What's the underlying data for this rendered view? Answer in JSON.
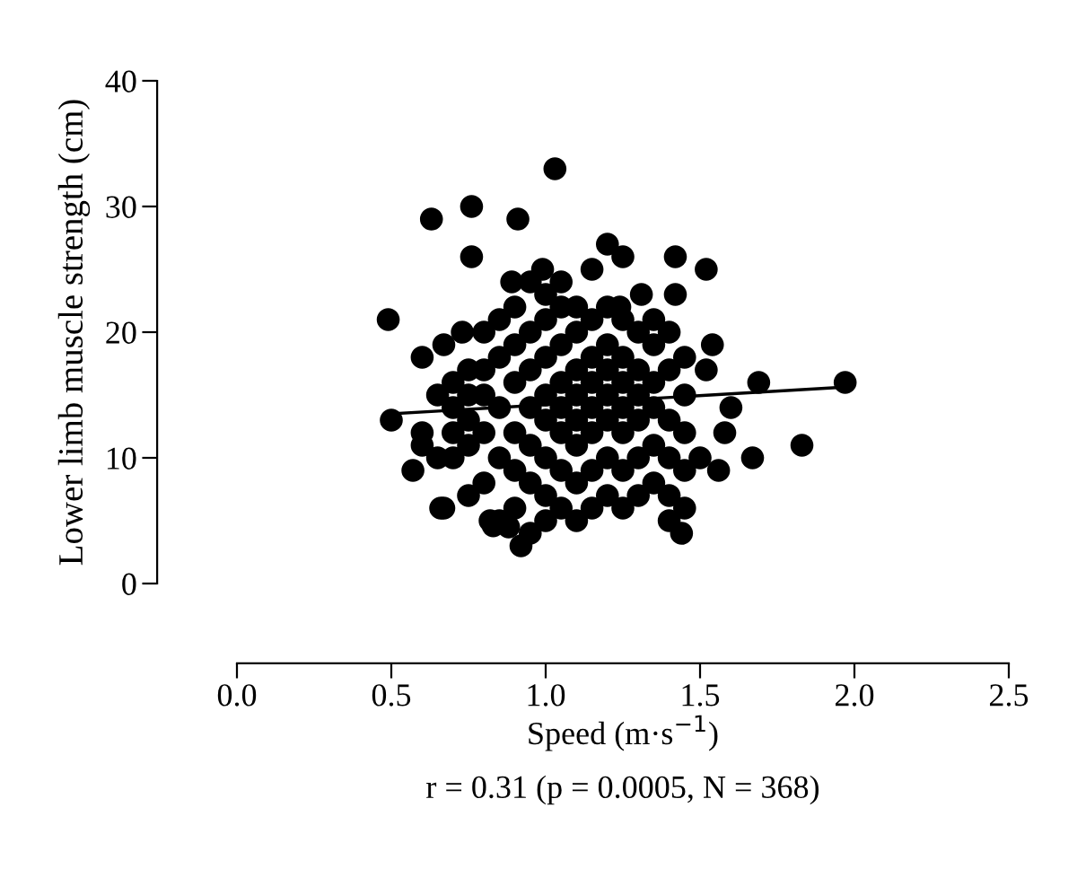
{
  "chart_data": {
    "type": "scatter",
    "xlabel": "Speed (m·s$^{−1}$)",
    "ylabel": "Lower limb muscle strength (cm)",
    "annotations": [
      "r = 0.31 (p = 0.0005, N = 368)"
    ],
    "xlim": [
      0,
      2.5
    ],
    "ylim": [
      0,
      40
    ],
    "xticks": [
      {
        "value": 0,
        "label": "0.0"
      },
      {
        "value": 0.5,
        "label": "0.5"
      },
      {
        "value": 1,
        "label": "1.0"
      },
      {
        "value": 1.5,
        "label": "1.5"
      },
      {
        "value": 2,
        "label": "2.0"
      },
      {
        "value": 2.5,
        "label": "2.5"
      }
    ],
    "yticks": [
      0,
      10,
      20,
      30,
      40
    ],
    "grid": false,
    "marker": "circle",
    "series": [
      {
        "color": "#000000",
        "x": [
          0.49,
          0.5,
          0.57,
          0.66,
          0.67,
          0.92,
          0.83,
          0.6,
          0.67,
          0.73,
          0.89,
          0.99,
          1.03,
          0.63,
          0.76,
          0.91,
          0.76,
          1.2,
          1.25,
          1.42,
          1.52,
          1.42,
          1.31,
          1.24,
          1.69,
          1.97,
          1.6,
          1.58,
          1.67,
          1.83,
          1.56,
          1.5,
          1.44,
          1.54,
          1.52,
          0.8,
          0.8,
          0.8,
          0.8,
          0.8,
          0.85,
          0.85,
          0.85,
          0.85,
          0.85,
          0.9,
          0.9,
          0.9,
          0.9,
          0.9,
          0.9,
          0.95,
          0.95,
          0.95,
          0.95,
          0.95,
          0.95,
          0.95,
          1.0,
          1.0,
          1.0,
          1.0,
          1.0,
          1.0,
          1.0,
          1.0,
          1.05,
          1.05,
          1.05,
          1.05,
          1.05,
          1.05,
          1.05,
          1.05,
          1.1,
          1.1,
          1.1,
          1.1,
          1.1,
          1.1,
          1.1,
          1.1,
          1.15,
          1.15,
          1.15,
          1.15,
          1.15,
          1.15,
          1.15,
          1.15,
          1.2,
          1.2,
          1.2,
          1.2,
          1.2,
          1.2,
          1.2,
          1.25,
          1.25,
          1.25,
          1.25,
          1.25,
          1.25,
          1.25,
          1.3,
          1.3,
          1.3,
          1.3,
          1.3,
          1.3,
          1.35,
          1.35,
          1.35,
          1.35,
          1.35,
          1.35,
          1.4,
          1.4,
          1.4,
          1.4,
          1.4,
          1.4,
          1.45,
          1.45,
          1.45,
          1.45,
          1.45,
          0.7,
          0.7,
          0.7,
          0.7,
          0.75,
          0.75,
          0.75,
          0.75,
          0.75,
          0.6,
          0.6,
          0.65,
          0.65,
          0.88,
          0.82
        ],
        "values": [
          21,
          13,
          9,
          6,
          6,
          3,
          4.6,
          18,
          19,
          20,
          24,
          25,
          33,
          29,
          30,
          29,
          26,
          27,
          26,
          26,
          25,
          23,
          23,
          22,
          16,
          16,
          14,
          12,
          10,
          11,
          9,
          10,
          4,
          19,
          17,
          8,
          12,
          15,
          17,
          20,
          5,
          10,
          14,
          18,
          21,
          6,
          9,
          12,
          16,
          19,
          22,
          4,
          8,
          11,
          14,
          17,
          20,
          24,
          5,
          7,
          10,
          13,
          15,
          18,
          21,
          23,
          6,
          9,
          12,
          14,
          16,
          19,
          22,
          24,
          5,
          8,
          11,
          13,
          15,
          17,
          20,
          22,
          6,
          9,
          12,
          14,
          16,
          18,
          21,
          25,
          7,
          10,
          13,
          15,
          17,
          19,
          22,
          6,
          9,
          12,
          14,
          16,
          18,
          21,
          7,
          10,
          13,
          15,
          17,
          20,
          8,
          11,
          14,
          16,
          19,
          21,
          5,
          7,
          10,
          13,
          17,
          20,
          6,
          9,
          12,
          15,
          18,
          10,
          12,
          14,
          16,
          7,
          11,
          13,
          15,
          17,
          11,
          12,
          10,
          15,
          4.5,
          5
        ]
      },
      {
        "type": "line",
        "color": "#000000",
        "x": [
          0.5,
          1.95
        ],
        "values": [
          13.5,
          15.6
        ],
        "marker": "none",
        "line_style": "solid"
      }
    ]
  }
}
